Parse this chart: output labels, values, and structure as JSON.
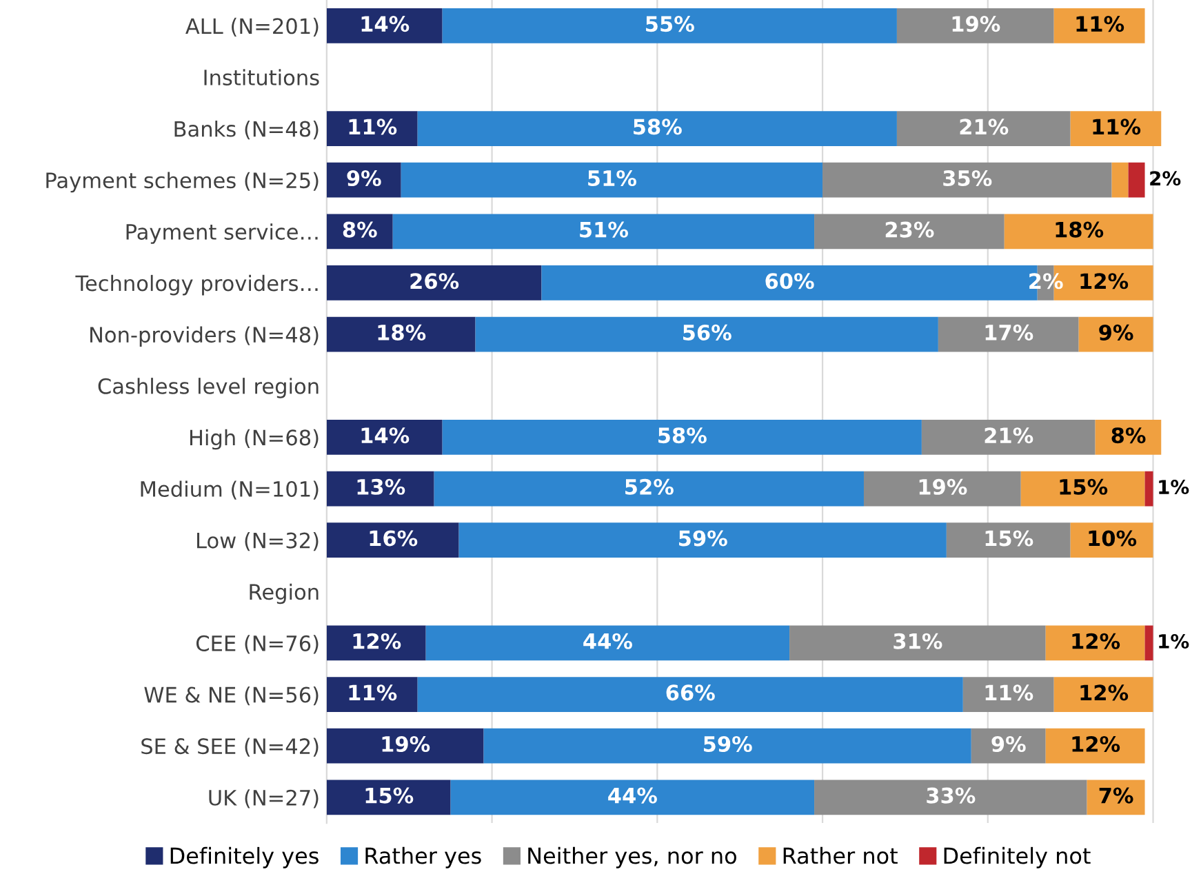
{
  "chart_data": {
    "type": "bar",
    "orientation": "horizontal",
    "stacked": true,
    "categories": [
      "ALL (N=201)",
      "Institutions",
      "Banks (N=48)",
      "Payment schemes (N=25)",
      "Payment service…",
      "Technology providers…",
      "Non-providers (N=48)",
      "Cashless level region",
      "High (N=68)",
      "Medium (N=101)",
      "Low (N=32)",
      "Region",
      "CEE (N=76)",
      "WE & NE (N=56)",
      "SE & SEE (N=42)",
      "UK (N=27)"
    ],
    "series": [
      {
        "name": "Definitely yes",
        "color": "#1f2d6e",
        "values": [
          14,
          null,
          11,
          9,
          8,
          26,
          18,
          null,
          14,
          13,
          16,
          null,
          12,
          11,
          19,
          15
        ],
        "value_labels": [
          "14%",
          null,
          "11%",
          "9%",
          "8%",
          "26%",
          "18%",
          null,
          "14%",
          "13%",
          "16%",
          null,
          "12%",
          "11%",
          "19%",
          "15%"
        ]
      },
      {
        "name": "Rather yes",
        "color": "#2e86d0",
        "values": [
          55,
          null,
          58,
          51,
          51,
          60,
          56,
          null,
          58,
          52,
          59,
          null,
          44,
          66,
          59,
          44
        ],
        "value_labels": [
          "55%",
          null,
          "58%",
          "51%",
          "51%",
          "60%",
          "56%",
          null,
          "58%",
          "52%",
          "59%",
          null,
          "44%",
          "66%",
          "59%",
          "44%"
        ]
      },
      {
        "name": "Neither yes, nor no",
        "color": "#8c8c8c",
        "values": [
          19,
          null,
          21,
          35,
          23,
          2,
          17,
          null,
          21,
          19,
          15,
          null,
          31,
          11,
          9,
          33
        ],
        "value_labels": [
          "19%",
          null,
          "21%",
          "35%",
          "23%",
          "2%",
          "17%",
          null,
          "21%",
          "19%",
          "15%",
          null,
          "31%",
          "11%",
          "9%",
          "33%"
        ]
      },
      {
        "name": "Rather not",
        "color": "#f0a040",
        "values": [
          11,
          null,
          11,
          2,
          18,
          12,
          9,
          null,
          8,
          15,
          10,
          null,
          12,
          12,
          12,
          7
        ],
        "value_labels": [
          "11%",
          null,
          "11%",
          null,
          "18%",
          "12%",
          "9%",
          null,
          "8%",
          "15%",
          "10%",
          null,
          "12%",
          "12%",
          "12%",
          "7%"
        ]
      },
      {
        "name": "Definitely not",
        "color": "#c0272d",
        "values": [
          null,
          null,
          null,
          2,
          null,
          null,
          null,
          null,
          null,
          1,
          null,
          null,
          1,
          null,
          null,
          null
        ],
        "value_labels": [
          null,
          null,
          null,
          "2%",
          null,
          null,
          null,
          null,
          null,
          "1%",
          null,
          null,
          "1%",
          null,
          null,
          null
        ]
      }
    ],
    "xlim": [
      0,
      101
    ],
    "xticks": [
      {
        "value": 0,
        "label": null
      },
      {
        "value": 20,
        "label": null
      },
      {
        "value": 40,
        "label": null
      },
      {
        "value": 60,
        "label": null
      },
      {
        "value": 80,
        "label": null
      },
      {
        "value": 100,
        "label": null
      }
    ],
    "tick_labels": "y",
    "grid": "x",
    "legend": "bottom"
  }
}
